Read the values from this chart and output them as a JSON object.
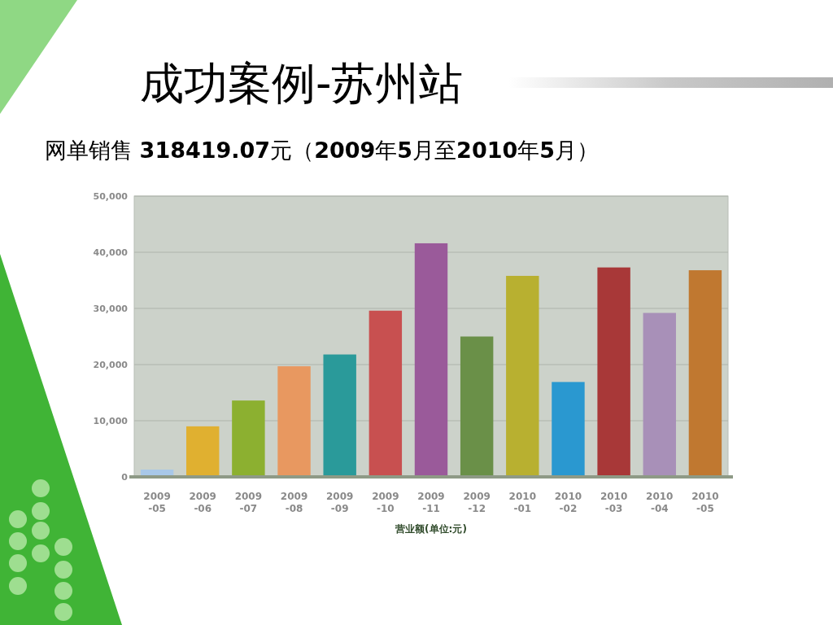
{
  "chart_data": {
    "type": "bar",
    "title": "成功案例-苏州站",
    "subtitle": "网单销售 **318419.07**元（**2009**年**5**月至**2010**年**5**月）",
    "xlabel": "营业额(单位:元)",
    "categories": [
      "2009-05",
      "2009-06",
      "2009-07",
      "2009-08",
      "2009-09",
      "2009-10",
      "2009-11",
      "2009-12",
      "2010-01",
      "2010-02",
      "2010-03",
      "2010-04",
      "2010-05"
    ],
    "values": [
      1300,
      9000,
      13600,
      19700,
      21800,
      29600,
      41600,
      25000,
      35800,
      16900,
      37300,
      29200,
      36800
    ],
    "colors": [
      "#a8c8e8",
      "#e0b030",
      "#8cb030",
      "#e89860",
      "#2a9a9a",
      "#c85050",
      "#9a5a9a",
      "#6a9048",
      "#b8b030",
      "#2a98d0",
      "#a83838",
      "#a890b8",
      "#c07830"
    ],
    "ylim": [
      0,
      50000
    ],
    "yticks": [
      0,
      {
        "value": 10000,
        "label": "10,000"
      },
      {
        "value": 20000,
        "label": "20,000"
      },
      {
        "value": 30000,
        "label": "30,000"
      },
      {
        "value": 40000,
        "label": "40,000"
      },
      {
        "value": 50000,
        "label": "50,000"
      }
    ],
    "grid": "y"
  }
}
